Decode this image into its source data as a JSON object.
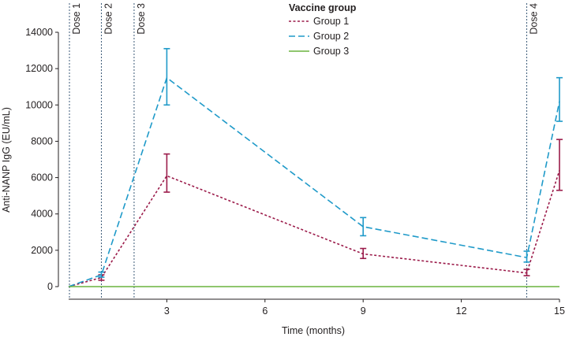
{
  "chart_data": {
    "type": "line",
    "xlabel": "Time (months)",
    "ylabel": "Anti-NANP IgG (EU/mL)",
    "xlim": [
      0,
      15
    ],
    "ylim": [
      0,
      14000
    ],
    "xticks": [
      3,
      6,
      9,
      12,
      15
    ],
    "yticks": [
      0,
      2000,
      4000,
      6000,
      8000,
      10000,
      12000,
      14000
    ],
    "legend_title": "Vaccine group",
    "doses": [
      {
        "label": "Dose 1",
        "x": 0
      },
      {
        "label": "Dose 2",
        "x": 1
      },
      {
        "label": "Dose 3",
        "x": 2
      },
      {
        "label": "Dose 4",
        "x": 14
      }
    ],
    "series": [
      {
        "name": "Group 1",
        "color": "#9b1b4a",
        "style": "dotted",
        "points": [
          {
            "x": 0,
            "y": 0
          },
          {
            "x": 1,
            "y": 500,
            "lo": 350,
            "hi": 650
          },
          {
            "x": 3,
            "y": 6100,
            "lo": 5200,
            "hi": 7300
          },
          {
            "x": 9,
            "y": 1800,
            "lo": 1550,
            "hi": 2100
          },
          {
            "x": 14,
            "y": 750,
            "lo": 600,
            "hi": 950
          },
          {
            "x": 15,
            "y": 6400,
            "lo": 5300,
            "hi": 8100
          }
        ]
      },
      {
        "name": "Group 2",
        "color": "#1f9ac9",
        "style": "dashed",
        "points": [
          {
            "x": 0,
            "y": 0
          },
          {
            "x": 1,
            "y": 650,
            "lo": 520,
            "hi": 800
          },
          {
            "x": 3,
            "y": 11500,
            "lo": 10000,
            "hi": 13100
          },
          {
            "x": 9,
            "y": 3300,
            "lo": 2800,
            "hi": 3800
          },
          {
            "x": 14,
            "y": 1600,
            "lo": 1350,
            "hi": 1950
          },
          {
            "x": 15,
            "y": 10200,
            "lo": 9100,
            "hi": 11500
          }
        ]
      },
      {
        "name": "Group 3",
        "color": "#6ab43e",
        "style": "solid",
        "points": [
          {
            "x": 0,
            "y": 0
          },
          {
            "x": 15,
            "y": 0
          }
        ]
      }
    ]
  }
}
